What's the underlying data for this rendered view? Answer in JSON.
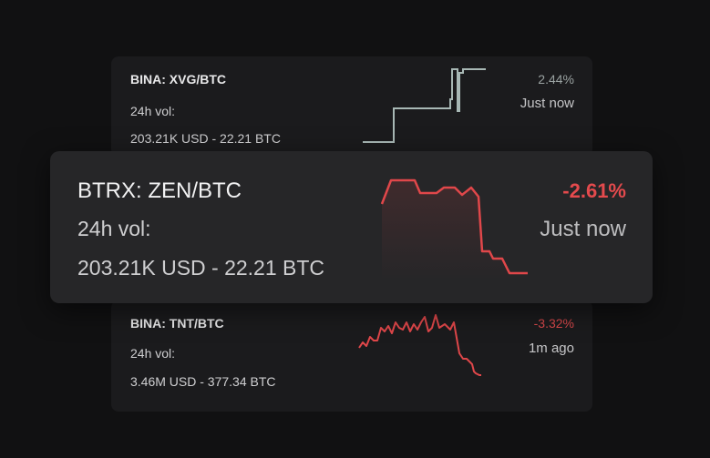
{
  "colors": {
    "background": "#111112",
    "card_bg": "#1b1b1d",
    "featured_card_bg": "#262628",
    "up_line": "#a8b8b5",
    "down_line": "#e0474a",
    "up_text": "#9aa2a1",
    "down_text": "#e44a4d"
  },
  "cards": [
    {
      "pair": "BINA: XVG/BTC",
      "vol_label": "24h vol:",
      "vol_value": "203.21K USD - 22.21 BTC",
      "change": "2.44%",
      "time": "Just now",
      "trend": "up"
    },
    {
      "pair": "BTRX: ZEN/BTC",
      "vol_label": "24h vol:",
      "vol_value": "203.21K USD - 22.21 BTC",
      "change": "-2.61%",
      "time": "Just now",
      "trend": "down",
      "featured": true
    },
    {
      "pair": "BINA: TNT/BTC",
      "vol_label": "24h vol:",
      "vol_value": "3.46M USD - 377.34 BTC",
      "change": "-3.32%",
      "time": "1m ago",
      "trend": "down"
    }
  ]
}
